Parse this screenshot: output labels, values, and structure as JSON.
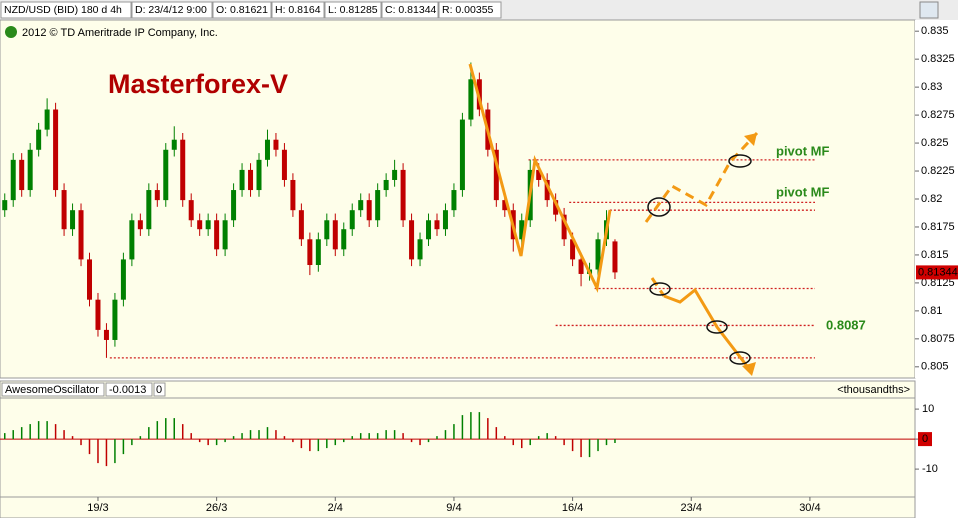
{
  "header": {
    "symbol": "NZD/USD (BID) 180 d 4h",
    "date": "D: 23/4/12 9:00",
    "open": "O: 0.81621",
    "high": "H: 0.8164",
    "low": "L: 0.81285",
    "close": "C: 0.81344",
    "range": "R: 0.00355"
  },
  "copyright": "2012 © TD Ameritrade IP Company, Inc.",
  "chart_data": [
    {
      "type": "candlestick",
      "title": "Masterforex-V",
      "up_color": "#008000",
      "down_color": "#c00000",
      "xlim": [
        -5.78,
        48.2
      ],
      "xticks": [
        {
          "value": 0,
          "label": "19/3"
        },
        {
          "value": 7,
          "label": "26/3"
        },
        {
          "value": 14,
          "label": "2/4"
        },
        {
          "value": 21,
          "label": "9/4"
        },
        {
          "value": 28,
          "label": "16/4"
        },
        {
          "value": 35,
          "label": "23/4"
        },
        {
          "value": 42,
          "label": "30/4"
        }
      ],
      "ylim": [
        0.804,
        0.836
      ],
      "yticks": [
        0.835,
        0.8325,
        0.83,
        0.8275,
        0.825,
        0.8225,
        0.82,
        0.8175,
        0.815,
        0.8125,
        0.81,
        0.8075,
        0.805
      ],
      "last_price": 0.81344,
      "candles": [
        [
          -5.5,
          0.819,
          0.8205,
          0.8184,
          0.8199
        ],
        [
          -5,
          0.8199,
          0.8241,
          0.8193,
          0.8235
        ],
        [
          -4.5,
          0.8235,
          0.8241,
          0.8202,
          0.8208
        ],
        [
          -4,
          0.8208,
          0.825,
          0.8202,
          0.8244
        ],
        [
          -3.5,
          0.8244,
          0.8268,
          0.8238,
          0.8262
        ],
        [
          -3,
          0.8262,
          0.829,
          0.8256,
          0.828
        ],
        [
          -2.5,
          0.828,
          0.8286,
          0.8202,
          0.8208
        ],
        [
          -2,
          0.8208,
          0.8214,
          0.8167,
          0.8173
        ],
        [
          -1.5,
          0.8173,
          0.8196,
          0.8167,
          0.819
        ],
        [
          -1,
          0.819,
          0.8196,
          0.814,
          0.8146
        ],
        [
          -0.5,
          0.8146,
          0.8152,
          0.8104,
          0.811
        ],
        [
          0,
          0.811,
          0.8116,
          0.8077,
          0.8083
        ],
        [
          0.5,
          0.8083,
          0.8089,
          0.8058,
          0.8074
        ],
        [
          1,
          0.8074,
          0.8116,
          0.8068,
          0.811
        ],
        [
          1.5,
          0.811,
          0.8152,
          0.8104,
          0.8146
        ],
        [
          2,
          0.8146,
          0.8187,
          0.814,
          0.8181
        ],
        [
          2.5,
          0.8181,
          0.8187,
          0.8167,
          0.8173
        ],
        [
          3,
          0.8173,
          0.8214,
          0.8167,
          0.8208
        ],
        [
          3.5,
          0.8208,
          0.8214,
          0.8193,
          0.8199
        ],
        [
          4,
          0.8199,
          0.825,
          0.8193,
          0.8244
        ],
        [
          4.5,
          0.8244,
          0.8265,
          0.8238,
          0.8253
        ],
        [
          5,
          0.8253,
          0.8259,
          0.8193,
          0.8199
        ],
        [
          5.5,
          0.8199,
          0.8205,
          0.8175,
          0.8181
        ],
        [
          6,
          0.8181,
          0.8187,
          0.8167,
          0.8173
        ],
        [
          6.5,
          0.8173,
          0.8187,
          0.8167,
          0.8181
        ],
        [
          7,
          0.8181,
          0.8187,
          0.8149,
          0.8155
        ],
        [
          7.5,
          0.8155,
          0.8187,
          0.8149,
          0.8181
        ],
        [
          8,
          0.8181,
          0.8214,
          0.8175,
          0.8208
        ],
        [
          8.5,
          0.8208,
          0.8232,
          0.8202,
          0.8226
        ],
        [
          9,
          0.8226,
          0.8232,
          0.8202,
          0.8208
        ],
        [
          9.5,
          0.8208,
          0.8241,
          0.8202,
          0.8235
        ],
        [
          10,
          0.8235,
          0.8262,
          0.8229,
          0.8253
        ],
        [
          10.5,
          0.8253,
          0.8259,
          0.8238,
          0.8244
        ],
        [
          11,
          0.8244,
          0.825,
          0.8211,
          0.8217
        ],
        [
          11.5,
          0.8217,
          0.8223,
          0.8184,
          0.819
        ],
        [
          12,
          0.819,
          0.8196,
          0.8158,
          0.8164
        ],
        [
          12.5,
          0.8164,
          0.817,
          0.8132,
          0.8141
        ],
        [
          13,
          0.8141,
          0.817,
          0.8135,
          0.8164
        ],
        [
          13.5,
          0.8164,
          0.8187,
          0.8158,
          0.8181
        ],
        [
          14,
          0.8181,
          0.8187,
          0.8149,
          0.8155
        ],
        [
          14.5,
          0.8155,
          0.8179,
          0.8149,
          0.8173
        ],
        [
          15,
          0.8173,
          0.8196,
          0.8167,
          0.819
        ],
        [
          15.5,
          0.819,
          0.8205,
          0.8184,
          0.8199
        ],
        [
          16,
          0.8199,
          0.8205,
          0.8175,
          0.8181
        ],
        [
          16.5,
          0.8181,
          0.8214,
          0.8175,
          0.8208
        ],
        [
          17,
          0.8208,
          0.8223,
          0.8202,
          0.8217
        ],
        [
          17.5,
          0.8217,
          0.8235,
          0.8211,
          0.8226
        ],
        [
          18,
          0.8226,
          0.8232,
          0.8175,
          0.8181
        ],
        [
          18.5,
          0.8181,
          0.8187,
          0.814,
          0.8146
        ],
        [
          19,
          0.8146,
          0.817,
          0.814,
          0.8164
        ],
        [
          19.5,
          0.8164,
          0.8187,
          0.8158,
          0.8181
        ],
        [
          20,
          0.8181,
          0.8187,
          0.8167,
          0.8173
        ],
        [
          20.5,
          0.8173,
          0.8196,
          0.8167,
          0.819
        ],
        [
          21,
          0.819,
          0.8214,
          0.8184,
          0.8208
        ],
        [
          21.5,
          0.8208,
          0.8277,
          0.8202,
          0.8271
        ],
        [
          22,
          0.8271,
          0.8322,
          0.8265,
          0.8307
        ],
        [
          22.5,
          0.8307,
          0.8313,
          0.8274,
          0.828
        ],
        [
          23,
          0.828,
          0.8286,
          0.8238,
          0.8244
        ],
        [
          23.5,
          0.8244,
          0.825,
          0.8193,
          0.8199
        ],
        [
          24,
          0.8199,
          0.8205,
          0.8184,
          0.819
        ],
        [
          24.5,
          0.819,
          0.8196,
          0.8153,
          0.8164
        ],
        [
          25,
          0.8164,
          0.8187,
          0.8158,
          0.8181
        ],
        [
          25.5,
          0.8181,
          0.8235,
          0.8175,
          0.8226
        ],
        [
          26,
          0.8226,
          0.8232,
          0.8211,
          0.8217
        ],
        [
          26.5,
          0.8217,
          0.8223,
          0.8193,
          0.8199
        ],
        [
          27,
          0.8199,
          0.8205,
          0.818,
          0.8186
        ],
        [
          27.5,
          0.8186,
          0.8192,
          0.8158,
          0.8164
        ],
        [
          28,
          0.8164,
          0.817,
          0.814,
          0.8146
        ],
        [
          28.5,
          0.8146,
          0.8152,
          0.8122,
          0.8133
        ],
        [
          29,
          0.8133,
          0.8143,
          0.8127,
          0.8137
        ],
        [
          29.5,
          0.8137,
          0.817,
          0.8131,
          0.8164
        ],
        [
          30,
          0.8164,
          0.819,
          0.8158,
          0.8181
        ],
        [
          30.5,
          0.81621,
          0.8164,
          0.81285,
          0.81344
        ]
      ],
      "levels": [
        {
          "value": 0.8235,
          "from": 25.4
        },
        {
          "value": 0.8197,
          "from": 27.8
        },
        {
          "value": 0.819,
          "from": 30.2
        },
        {
          "value": 0.812,
          "from": 29.3
        },
        {
          "value": 0.8087,
          "from": 27.0
        },
        {
          "value": 0.8058,
          "from": 0.7
        }
      ],
      "level_color": "#d02020",
      "annotations": [
        "pivot MF",
        "pivot MF",
        "0.8087"
      ]
    },
    {
      "type": "oscillator",
      "title": "AwesomeOscillator",
      "current_value": "-0.0013",
      "marker": "0",
      "unit_label": "<thousandths>",
      "up_color": "#008000",
      "down_color": "#c00000",
      "ylim": [
        -19.3,
        13.7
      ],
      "yticks": [
        10,
        0,
        -10
      ],
      "values": [
        2,
        3,
        4,
        5,
        6,
        6,
        5,
        3,
        1,
        -2,
        -5,
        -8,
        -9,
        -8,
        -5,
        -2,
        1,
        4,
        6,
        7,
        7,
        5,
        2,
        -1,
        -2,
        -2,
        -1,
        1,
        2,
        3,
        3,
        4,
        3,
        1,
        -1,
        -3,
        -4,
        -4,
        -3,
        -2,
        -1,
        1,
        2,
        2,
        2,
        3,
        3,
        2,
        -1,
        -2,
        -1,
        1,
        3,
        5,
        8,
        9,
        9,
        7,
        4,
        1,
        -2,
        -3,
        -2,
        1,
        2,
        1,
        -2,
        -4,
        -6,
        -6,
        -4,
        -2,
        -1.3
      ]
    }
  ]
}
